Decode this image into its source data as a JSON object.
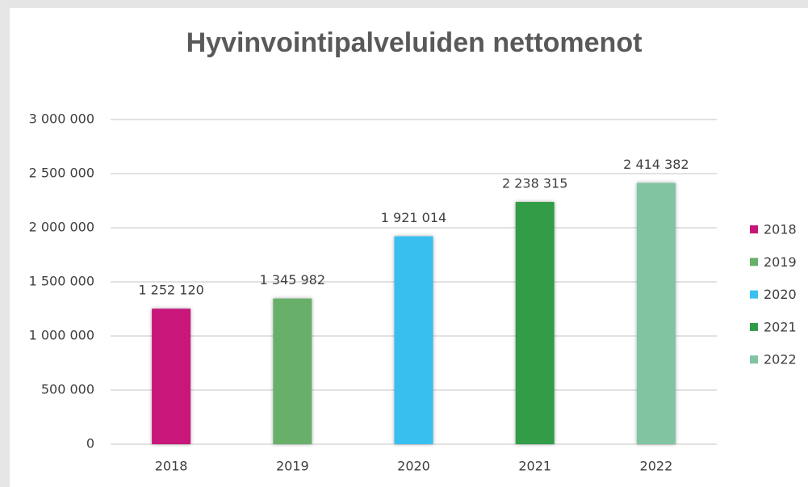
{
  "chart_data": {
    "type": "bar",
    "title": "Hyvinvointipalveluiden nettomenot",
    "categories": [
      "2018",
      "2019",
      "2020",
      "2021",
      "2022"
    ],
    "values": [
      1252120,
      1345982,
      1921014,
      2238315,
      2414382
    ],
    "value_labels": [
      "1 252 120",
      "1 345 982",
      "1 921 014",
      "2 238 315",
      "2 414 382"
    ],
    "colors": [
      "#c8157a",
      "#68b06a",
      "#39bff0",
      "#319c47",
      "#80c4a2"
    ],
    "ylim": [
      0,
      3000000
    ],
    "yticks": [
      0,
      {
        "value": 500000,
        "label": "500 000"
      },
      {
        "value": 1000000,
        "label": "1 000 000"
      },
      {
        "value": 1500000,
        "label": "1 500 000"
      },
      {
        "value": 2000000,
        "label": "2 000 000"
      },
      {
        "value": 2500000,
        "label": "2 500 000"
      },
      {
        "value": 3000000,
        "label": "3 000 000"
      }
    ],
    "grid": true,
    "legend": "right"
  }
}
